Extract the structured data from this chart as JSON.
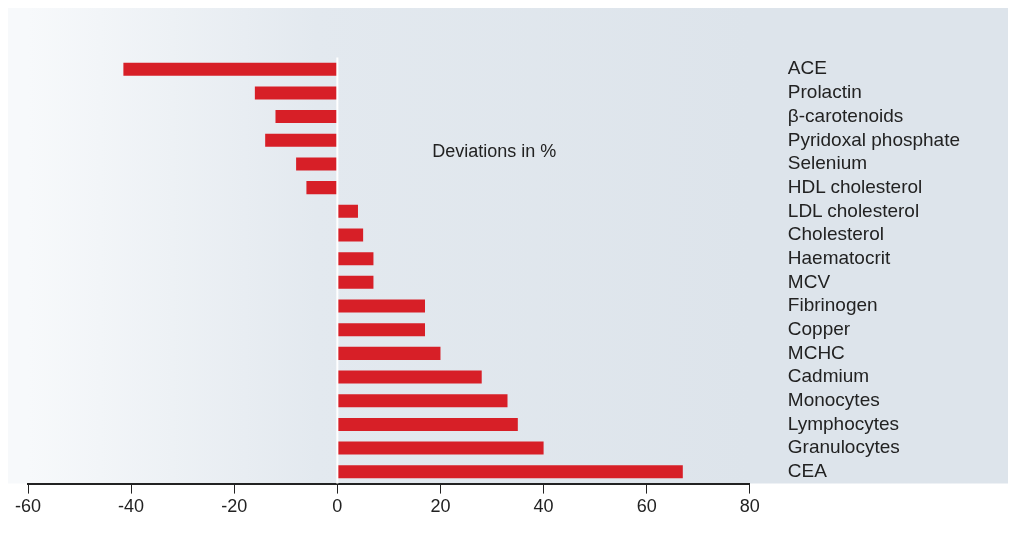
{
  "chart_data": {
    "type": "bar",
    "orientation": "horizontal",
    "categories": [
      "ACE",
      "Prolactin",
      "β-carotenoids",
      "Pyridoxal phosphate",
      "Selenium",
      "HDL cholesterol",
      "LDL cholesterol",
      "Cholesterol",
      "Haematocrit",
      "MCV",
      "Fibrinogen",
      "Copper",
      "MCHC",
      "Cadmium",
      "Monocytes",
      "Lymphocytes",
      "Granulocytes",
      "CEA"
    ],
    "values": [
      -41.5,
      -16,
      -12,
      -14,
      -8,
      -6,
      4,
      5,
      7,
      7,
      17,
      17,
      20,
      28,
      33,
      35,
      40,
      67
    ],
    "color": "#d71f27",
    "xlim": [
      -60,
      80
    ],
    "xticks": [
      -60,
      -40,
      -20,
      0,
      20,
      40,
      60,
      80
    ],
    "annotations": [
      "Deviations in %"
    ],
    "ref_lines": [
      {
        "axis": "x",
        "value": 0,
        "color": "#ffffff"
      }
    ],
    "grid": false,
    "legend": false
  }
}
